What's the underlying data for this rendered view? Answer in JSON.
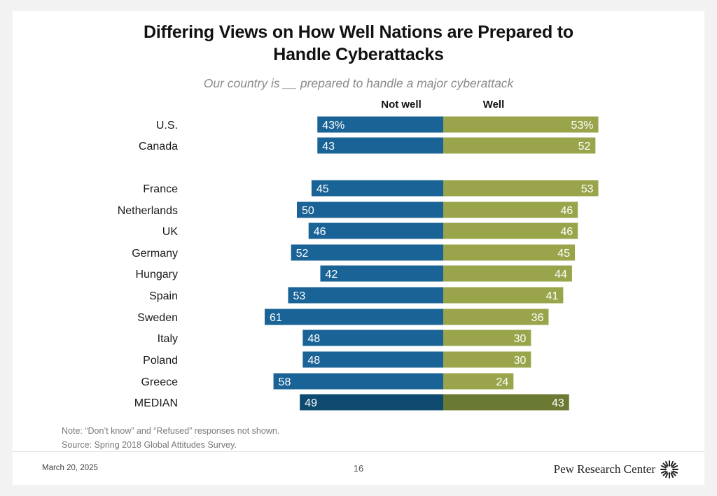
{
  "title_line1": "Differing Views on How Well Nations are Prepared to",
  "title_line2": "Handle Cyberattacks",
  "chart_data": {
    "type": "bar",
    "orientation": "horizontal-diverging",
    "subtitle": "Our country is __ prepared to handle a major cyberattack",
    "series": [
      {
        "name": "Not well",
        "color": "#1a6396",
        "median_color": "#0e4a6f"
      },
      {
        "name": "Well",
        "color": "#9aa54b",
        "median_color": "#6b7a33"
      }
    ],
    "categories": [
      "U.S.",
      "Canada",
      "France",
      "Netherlands",
      "UK",
      "Germany",
      "Hungary",
      "Spain",
      "Sweden",
      "Italy",
      "Poland",
      "Greece",
      "MEDIAN"
    ],
    "not_well": [
      43,
      43,
      45,
      50,
      46,
      52,
      42,
      53,
      61,
      48,
      48,
      58,
      49
    ],
    "well": [
      53,
      52,
      53,
      46,
      46,
      45,
      44,
      41,
      36,
      30,
      30,
      24,
      43
    ],
    "first_row_suffix": "%"
  },
  "notes": {
    "note": "Note: “Don’t know” and “Refused” responses not shown.",
    "source": "Source: Spring 2018 Global Attitudes Survey."
  },
  "footer": {
    "date": "March 20, 2025",
    "page": "16",
    "brand": "Pew Research Center",
    "brand_icon": "pew-logo-icon"
  }
}
